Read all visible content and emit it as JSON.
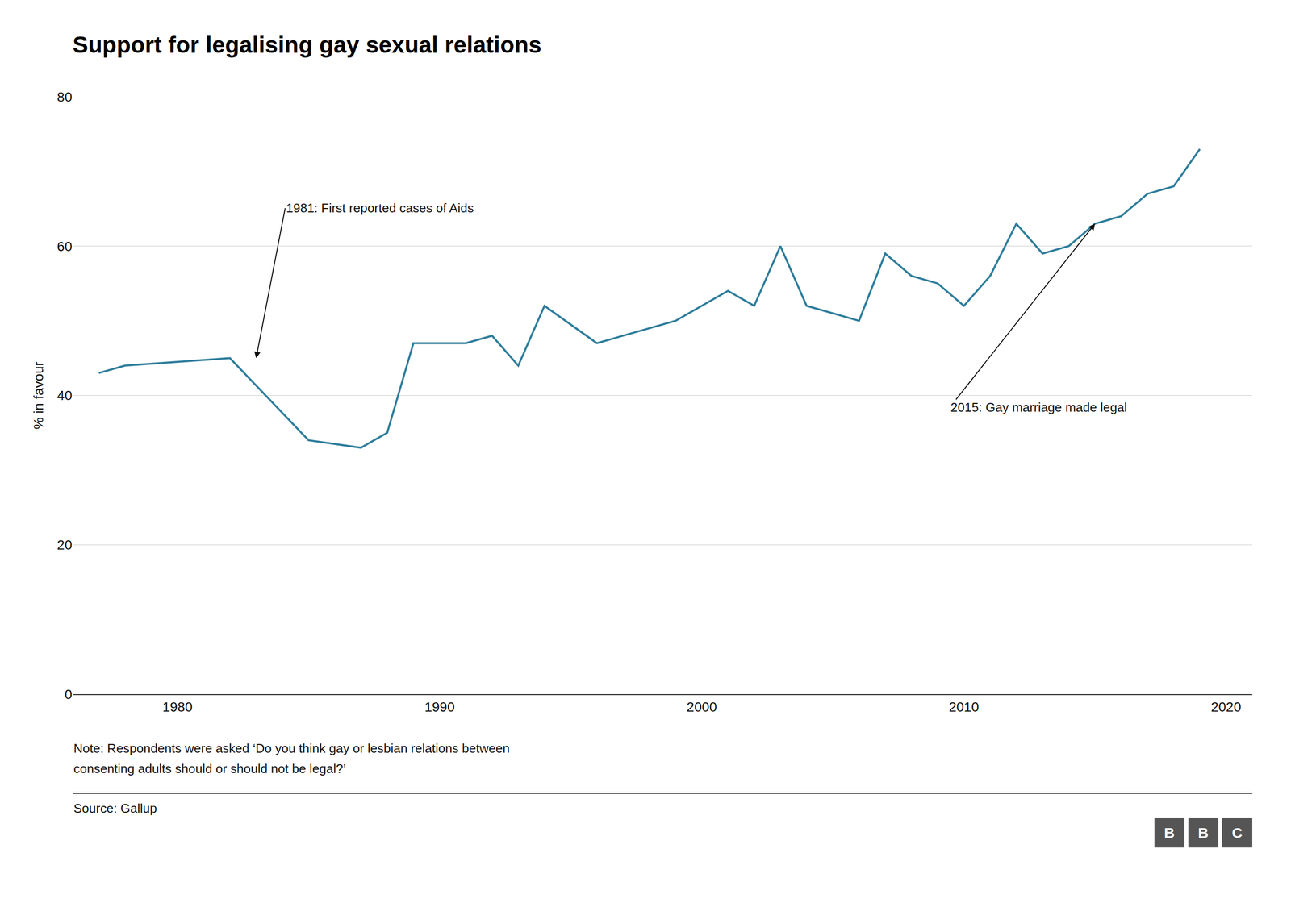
{
  "chart_data": {
    "type": "line",
    "title": "Support for legalising gay sexual relations",
    "y_label": "% in favour",
    "x": [
      1977,
      1978,
      1982,
      1985,
      1987,
      1988,
      1989,
      1990,
      1991,
      1992,
      1993,
      1994,
      1996,
      1999,
      2001,
      2002,
      2003,
      2004,
      2006,
      2007,
      2008,
      2009,
      2010,
      2011,
      2012,
      2013,
      2014,
      2015,
      2016,
      2017,
      2018,
      2019
    ],
    "values": [
      43,
      44,
      45,
      34,
      33,
      35,
      47,
      47,
      47,
      48,
      44,
      52,
      47,
      50,
      54,
      52,
      60,
      52,
      50,
      59,
      56,
      55,
      52,
      56,
      63,
      59,
      60,
      63,
      64,
      67,
      68,
      73
    ],
    "color": "#2e7d9c",
    "xlim": [
      1976,
      2021
    ],
    "ylim": [
      0,
      80
    ],
    "xticks": [
      1980,
      1990,
      2000,
      2010,
      2020
    ],
    "yticks": [
      0,
      20,
      40,
      60,
      80
    ],
    "grid": true,
    "annotations": [
      {
        "text": "1981: First reported cases of Aids",
        "x": 1983,
        "y": 45
      },
      {
        "text": "2015: Gay marriage made legal",
        "x": 2015,
        "y": 63
      }
    ],
    "notes": [
      "Note: Respondents were asked ‘Do you think gay or lesbian relations between",
      "consenting adults should or should not be legal?’"
    ],
    "source": "Source: Gallup",
    "logo": "BBC"
  }
}
